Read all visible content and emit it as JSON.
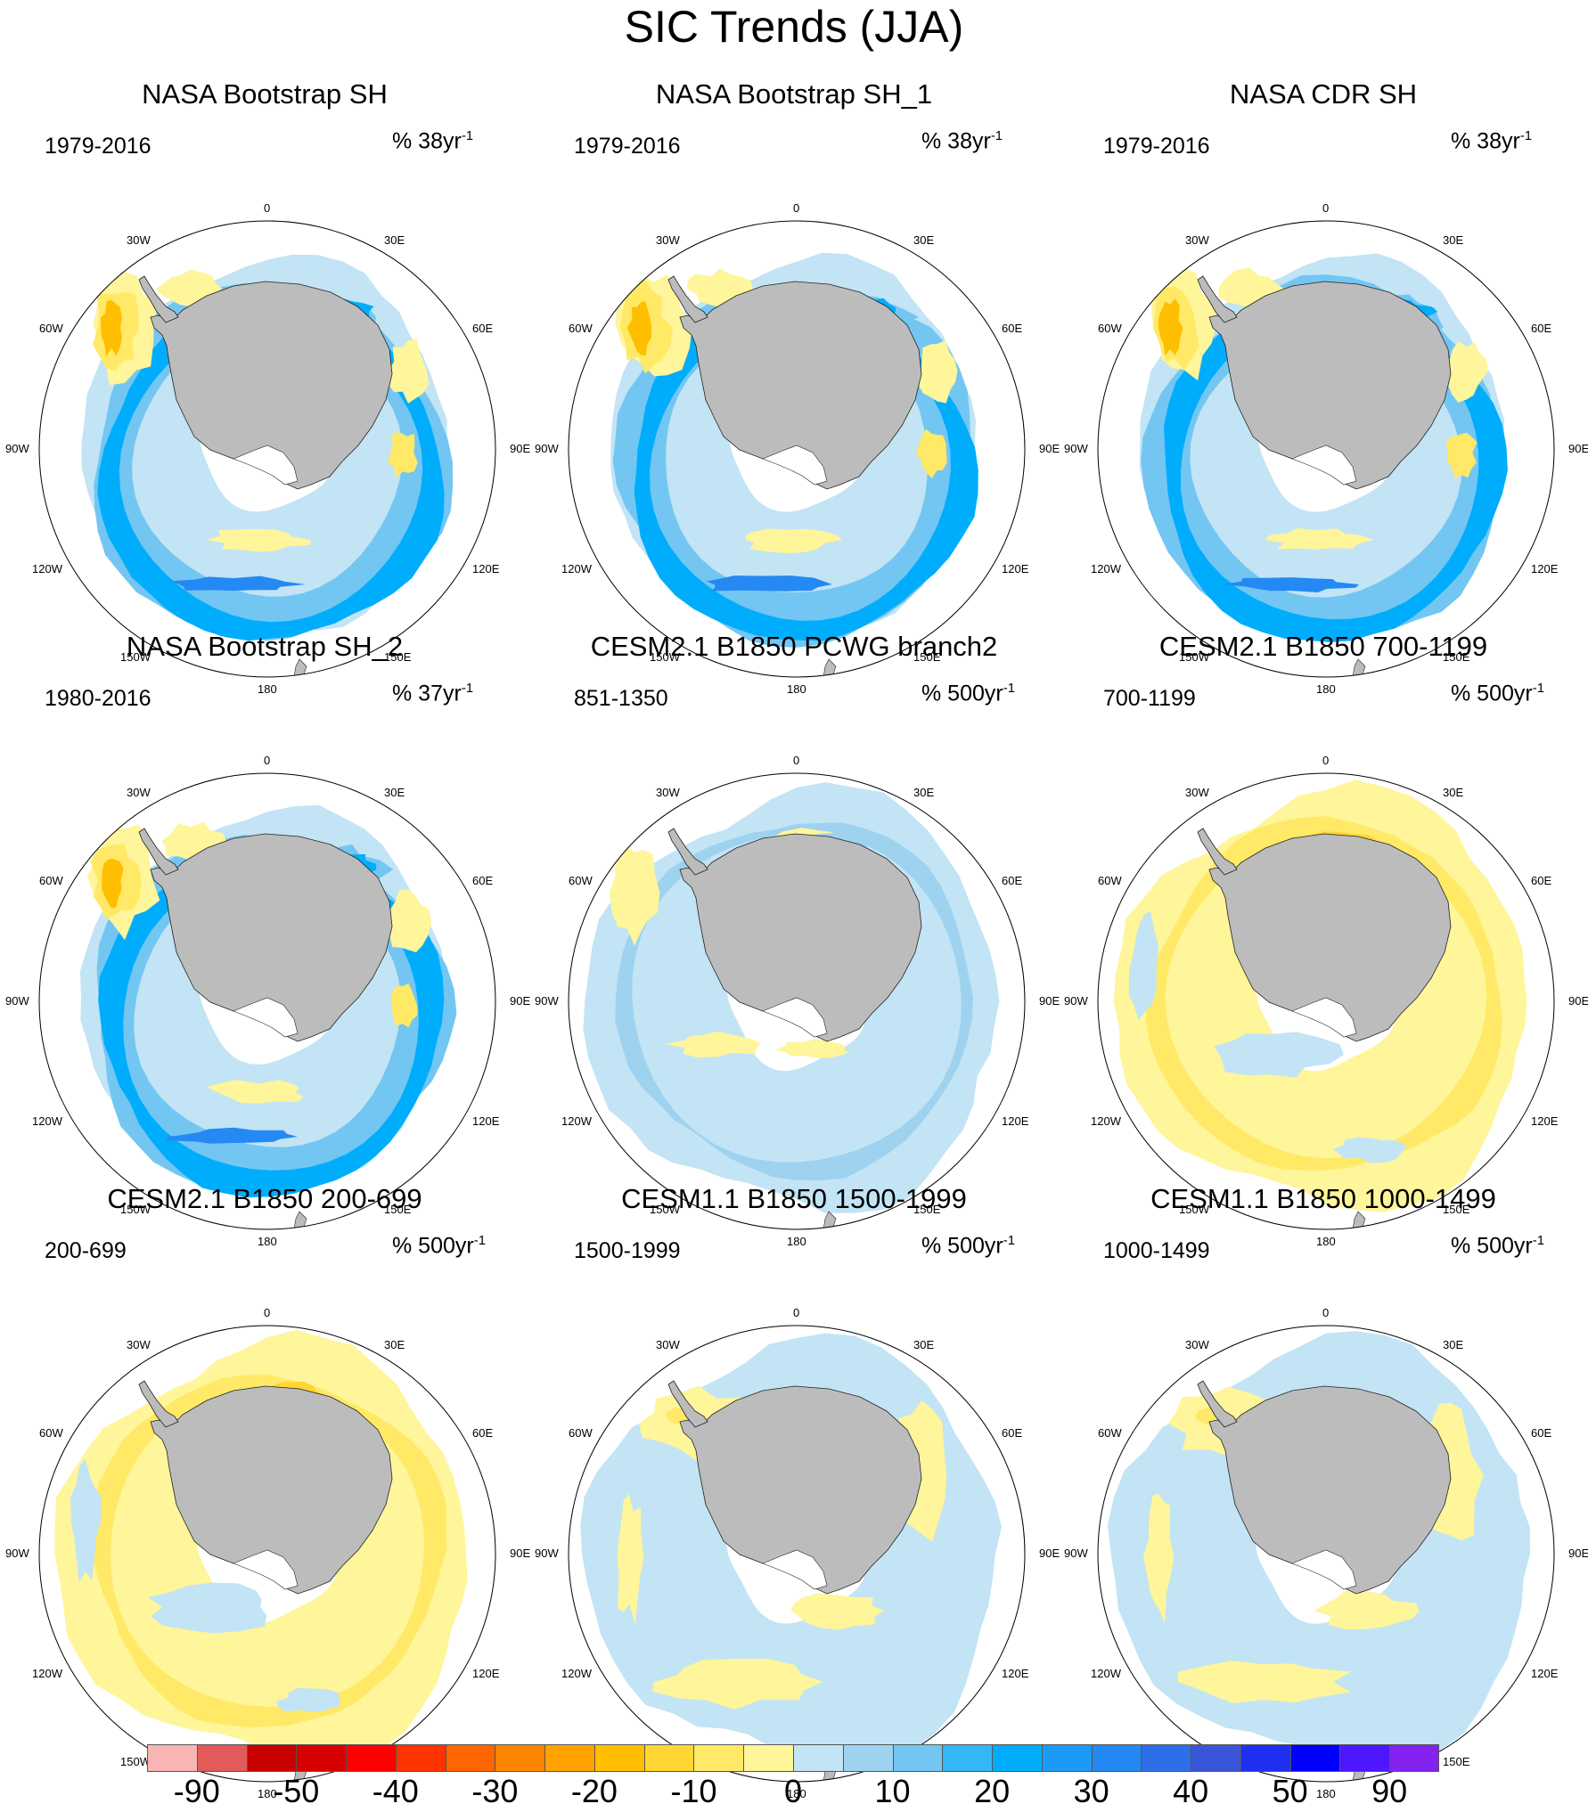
{
  "title": "SIC Trends (JJA)",
  "coordinate_labels": [
    "0",
    "30E",
    "60E",
    "90E",
    "120E",
    "150E",
    "180",
    "150W",
    "120W",
    "90W",
    "60W",
    "30W"
  ],
  "panels": [
    {
      "title": "NASA Bootstrap SH",
      "period": "1979-2016",
      "units_prefix": "% 38yr",
      "units_sup": "-1",
      "regime": "obs"
    },
    {
      "title": "NASA Bootstrap SH_1",
      "period": "1979-2016",
      "units_prefix": "% 38yr",
      "units_sup": "-1",
      "regime": "obs"
    },
    {
      "title": "NASA CDR SH",
      "period": "1979-2016",
      "units_prefix": "% 38yr",
      "units_sup": "-1",
      "regime": "obs"
    },
    {
      "title": "NASA Bootstrap SH_2",
      "period": "1980-2016",
      "units_prefix": "% 37yr",
      "units_sup": "-1",
      "regime": "obs"
    },
    {
      "title": "CESM2.1 B1850 PCWG branch2",
      "period": "851-1350",
      "units_prefix": "% 500yr",
      "units_sup": "-1",
      "regime": "model_blue"
    },
    {
      "title": "CESM2.1 B1850 700-1199",
      "period": "700-1199",
      "units_prefix": "% 500yr",
      "units_sup": "-1",
      "regime": "model_yellow"
    },
    {
      "title": "CESM2.1 B1850 200-699",
      "period": "200-699",
      "units_prefix": "% 500yr",
      "units_sup": "-1",
      "regime": "model_yellow"
    },
    {
      "title": "CESM1.1 B1850 1500-1999",
      "period": "1500-1999",
      "units_prefix": "% 500yr",
      "units_sup": "-1",
      "regime": "model_mixed"
    },
    {
      "title": "CESM1.1 B1850 1000-1499",
      "period": "1000-1499",
      "units_prefix": "% 500yr",
      "units_sup": "-1",
      "regime": "model_mixed"
    }
  ],
  "colorbar": {
    "colors": [
      "#f9b4b4",
      "#e35a5a",
      "#c80000",
      "#d70000",
      "#ff0000",
      "#ff3300",
      "#ff6600",
      "#ff8500",
      "#ffa200",
      "#ffbf00",
      "#ffd633",
      "#ffe966",
      "#fff59a",
      "#c2e4f5",
      "#9ed2ef",
      "#73c6f2",
      "#33b7f5",
      "#00adfc",
      "#1c9bf6",
      "#2489f3",
      "#2d6fe8",
      "#3a56d8",
      "#1f2ff0",
      "#0000ff",
      "#4d18ff",
      "#8422f0"
    ],
    "labels": [
      "-90",
      "-50",
      "-40",
      "-30",
      "-20",
      "-10",
      "0",
      "10",
      "20",
      "30",
      "40",
      "50",
      "90"
    ]
  },
  "legend_colors": {
    "land": "#bcbcbc",
    "continent_outline": "#222222"
  }
}
